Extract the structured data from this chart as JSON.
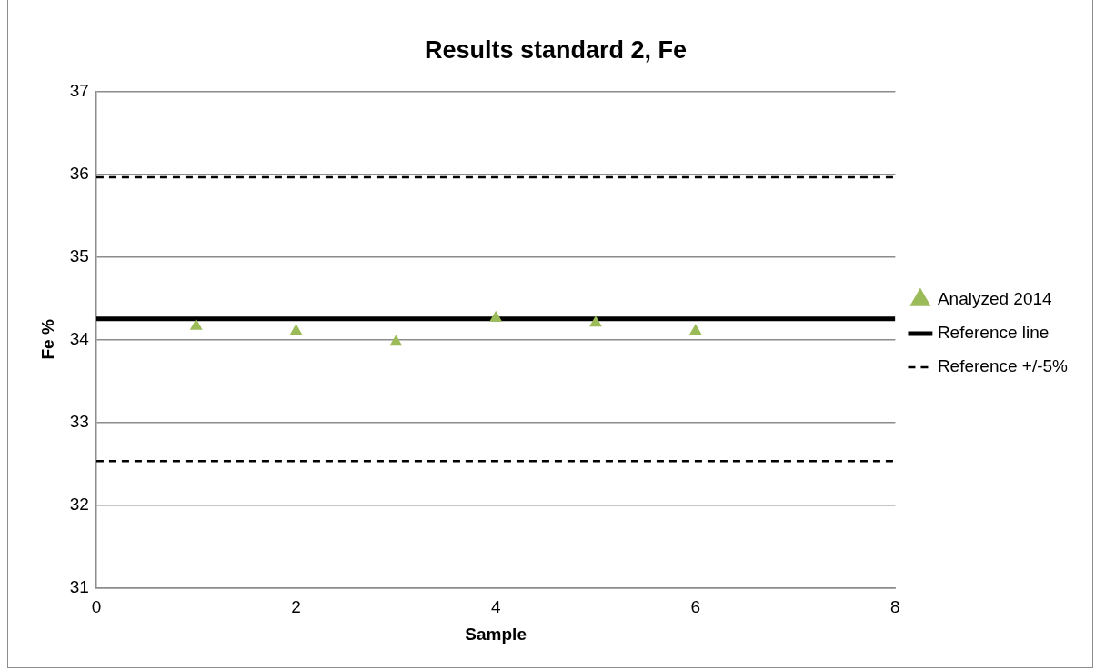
{
  "chart_data": {
    "type": "scatter",
    "title": "Results standard 2, Fe",
    "xlabel": "Sample",
    "ylabel": "Fe %",
    "xlim": [
      0,
      8
    ],
    "xticks": [
      0,
      2,
      4,
      6,
      8
    ],
    "ylim": [
      31,
      37
    ],
    "yticks": [
      31,
      32,
      33,
      34,
      35,
      36,
      37
    ],
    "grid": "y",
    "legend": "right",
    "marker": "triangle",
    "series": [
      {
        "name": "Analyzed 2014",
        "type": "scatter",
        "color": "#9bbb59",
        "x": [
          1,
          2,
          3,
          4,
          5,
          6
        ],
        "values": [
          34.16,
          34.1,
          33.97,
          34.26,
          34.2,
          34.1
        ]
      },
      {
        "name": "Reference line",
        "type": "line",
        "color": "#000000",
        "line_style": "solid",
        "marker": "none",
        "x": [
          0,
          8
        ],
        "values": [
          34.25,
          34.25
        ]
      },
      {
        "name": "Reference +/-5%",
        "type": "line",
        "color": "#000000",
        "line_style": "dashed",
        "marker": "none",
        "x": [
          0,
          8
        ],
        "values": [
          35.96,
          35.96
        ]
      },
      {
        "type": "line",
        "color": "#000000",
        "line_style": "dashed",
        "marker": "none",
        "x": [
          0,
          8
        ],
        "values": [
          32.53,
          32.53
        ]
      }
    ]
  }
}
